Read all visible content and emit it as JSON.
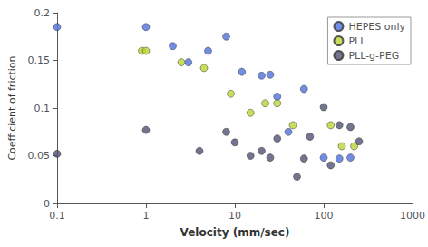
{
  "chart_data": {
    "type": "scatter",
    "xlabel": "Velocity (mm/sec)",
    "ylabel": "Coefficient of friction",
    "log": "x",
    "xlim": [
      0.1,
      1000
    ],
    "xticks": [
      0.1,
      1,
      10,
      100,
      1000
    ],
    "ylim": [
      0,
      0.2
    ],
    "yticks": [
      0,
      0.05,
      0.1,
      0.15,
      0.2
    ],
    "grid": false,
    "legend": "upper right",
    "marker": "circle",
    "series": [
      {
        "name": "HEPES only",
        "x": [
          0.1,
          1.0,
          2.0,
          3.0,
          5.0,
          8.0,
          12.0,
          20.0,
          25.0,
          30.0,
          40.0,
          60.0,
          100.0,
          150.0,
          200.0
        ],
        "values": [
          0.185,
          0.185,
          0.165,
          0.148,
          0.16,
          0.175,
          0.138,
          0.134,
          0.135,
          0.112,
          0.075,
          0.12,
          0.048,
          0.047,
          0.048
        ]
      },
      {
        "name": "PLL",
        "x": [
          0.9,
          1.0,
          2.5,
          4.5,
          9.0,
          15.0,
          22.0,
          30.0,
          45.0,
          120.0,
          160.0,
          220.0
        ],
        "values": [
          0.16,
          0.16,
          0.148,
          0.142,
          0.115,
          0.095,
          0.105,
          0.105,
          0.082,
          0.082,
          0.06,
          0.06
        ]
      },
      {
        "name": "PLL-g-PEG",
        "x": [
          0.1,
          1.0,
          4.0,
          8.0,
          10.0,
          15.0,
          20.0,
          25.0,
          30.0,
          50.0,
          60.0,
          70.0,
          100.0,
          120.0,
          150.0,
          200.0,
          250.0
        ],
        "values": [
          0.052,
          0.077,
          0.055,
          0.075,
          0.064,
          0.05,
          0.055,
          0.048,
          0.068,
          0.028,
          0.047,
          0.07,
          0.101,
          0.04,
          0.082,
          0.08,
          0.065
        ]
      }
    ]
  }
}
